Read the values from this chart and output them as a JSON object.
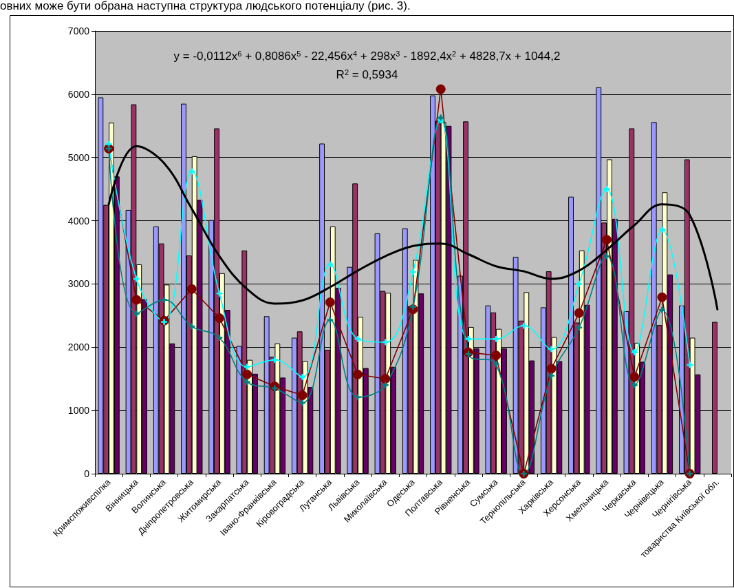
{
  "chart_data": {
    "type": "bar",
    "categories": [
      "Кримспоживспілка",
      "Вінницька",
      "Волинська",
      "Дніпропетровська",
      "Житомирська",
      "Закарпатська",
      "Івано-Франківська",
      "Кіровоградська",
      "Луганська",
      "Львівська",
      "Миколаївська",
      "Одеська",
      "Полтавська",
      "Рівненська",
      "Сумська",
      "Тернопільська",
      "Харківська",
      "Херсонська",
      "Хмельницька",
      "Черкаська",
      "Чернівецька",
      "Чернігівська",
      "товариства Київської обл."
    ],
    "series": [
      {
        "color": "#9999ff",
        "values": [
          5950,
          4170,
          3910,
          5850,
          4010,
          2020,
          2490,
          2150,
          5220,
          3270,
          3800,
          3880,
          5980,
          3130,
          2660,
          3430,
          2630,
          4380,
          6110,
          2570,
          5560,
          2660,
          null
        ]
      },
      {
        "color": "#993366",
        "values": [
          4250,
          5840,
          3640,
          3450,
          5460,
          3530,
          1850,
          2250,
          1960,
          4590,
          2890,
          2650,
          5580,
          5570,
          2550,
          2420,
          3200,
          2390,
          3970,
          5460,
          2350,
          4970,
          2400
        ]
      },
      {
        "color": "#ffffcc",
        "values": [
          5550,
          3310,
          2990,
          5020,
          3170,
          1800,
          2060,
          1780,
          3910,
          2480,
          2860,
          3380,
          5560,
          2320,
          2290,
          2870,
          2160,
          3530,
          4970,
          2070,
          4450,
          2150,
          null
        ]
      },
      {
        "color": "#660066",
        "values": [
          4700,
          2760,
          2060,
          4330,
          2590,
          1580,
          1520,
          1370,
          2940,
          1670,
          1690,
          2850,
          5500,
          1980,
          1980,
          1790,
          1780,
          2670,
          4030,
          1770,
          3150,
          1570,
          null
        ]
      },
      {
        "type": "line",
        "color": "#800000",
        "marker": "circle",
        "values": [
          5140,
          2750,
          2420,
          2920,
          2460,
          1570,
          1380,
          1240,
          2710,
          1570,
          1500,
          2600,
          6080,
          1920,
          1870,
          0,
          1660,
          2540,
          3700,
          1530,
          2790,
          0,
          null
        ]
      },
      {
        "type": "line",
        "color": "#00ffff",
        "marker": "cross",
        "values": [
          5210,
          3080,
          2400,
          4780,
          2850,
          1690,
          1800,
          1530,
          3310,
          2130,
          2080,
          3190,
          5590,
          2130,
          2130,
          2340,
          1970,
          3000,
          4500,
          1920,
          3860,
          1720,
          null
        ]
      },
      {
        "type": "line",
        "color": "#008080",
        "marker": "cross",
        "values": [
          5140,
          2530,
          2750,
          2330,
          2150,
          1450,
          1350,
          1120,
          2430,
          1210,
          1400,
          2640,
          5630,
          1890,
          1730,
          0,
          1550,
          2310,
          3440,
          1400,
          2590,
          0,
          null
        ]
      },
      {
        "type": "line",
        "color": "#000000",
        "marker": "none",
        "values": [
          4260,
          5180,
          4910,
          4190,
          3440,
          2920,
          2690,
          2740,
          2950,
          3210,
          3440,
          3600,
          3640,
          3470,
          3280,
          3200,
          3080,
          3210,
          3540,
          3930,
          4260,
          4090,
          2600
        ]
      }
    ],
    "ylim": [
      0,
      7000
    ],
    "yticks": [
      0,
      1000,
      2000,
      3000,
      4000,
      5000,
      6000,
      7000
    ],
    "grid": "y",
    "annotations": [
      "овних може бути обрана наступна структура людського потенціалу (рис. 3).",
      "y = -0,0112x$^{6}$ + 0,8086x$^{5}$ - 22,456x$^{4}$ + 298x$^{3}$ - 1892,4x$^{2}$ + 4828,7x + 1044,2",
      "R$^{2}$ = 0,5934"
    ]
  }
}
